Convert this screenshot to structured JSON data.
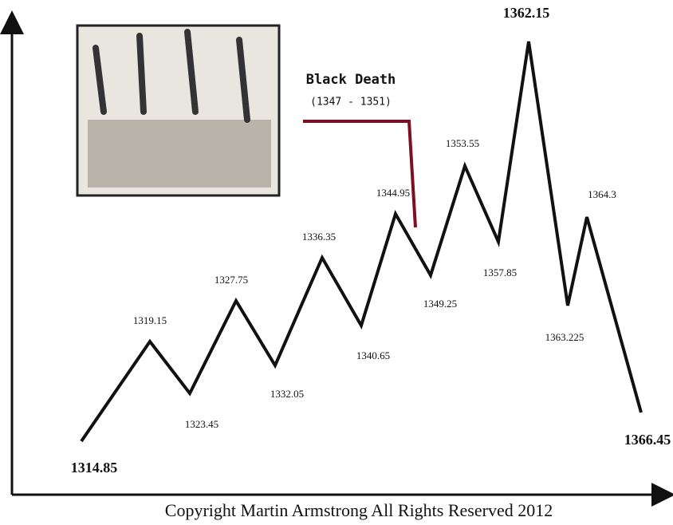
{
  "nodes": [
    {
      "label": "1314.85"
    },
    {
      "label": "1319.15"
    },
    {
      "label": "1323.45"
    },
    {
      "label": "1327.75"
    },
    {
      "label": "1332.05"
    },
    {
      "label": "1336.35"
    },
    {
      "label": "1340.65"
    },
    {
      "label": "1344.95"
    },
    {
      "label": "1349.25"
    },
    {
      "label": "1353.55"
    },
    {
      "label": "1357.85"
    },
    {
      "label": "1362.15"
    },
    {
      "label": "1363.225"
    },
    {
      "label": "1364.3"
    },
    {
      "label": "1366.45"
    }
  ],
  "annotation": {
    "title": "Black Death",
    "subtitle": "(1347 - 1351)"
  },
  "footer": "Copyright Martin Armstrong All Rights Reserved 2012"
}
